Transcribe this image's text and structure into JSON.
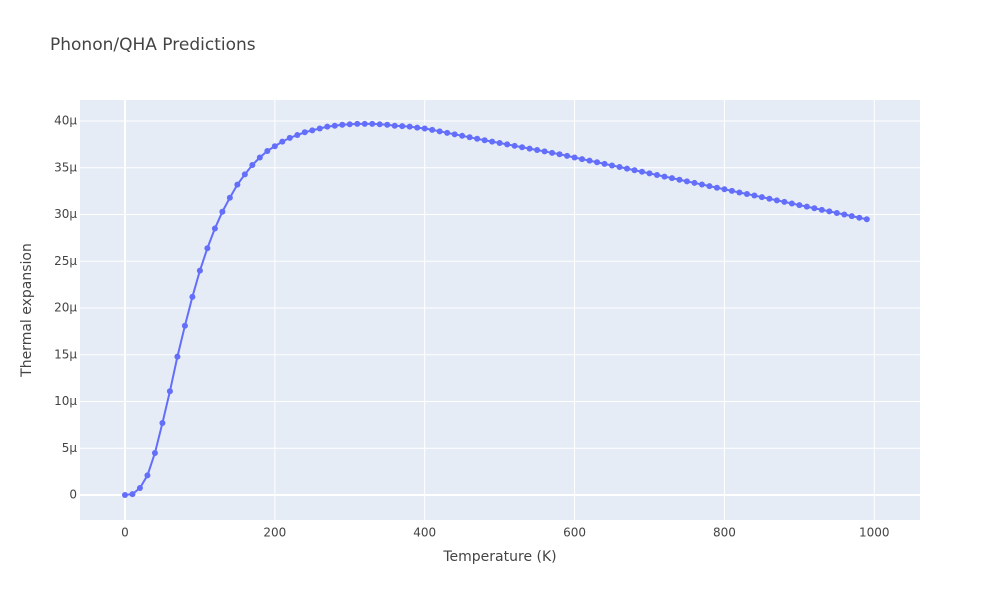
{
  "chart_data": {
    "type": "line",
    "title": "Phonon/QHA Predictions",
    "x_label": "Temperature (K)",
    "y_label": "Thermal expansion",
    "color": "#636efa",
    "grid": true,
    "markers": true,
    "x": [
      0,
      10,
      20,
      30,
      40,
      50,
      60,
      70,
      80,
      90,
      100,
      110,
      120,
      130,
      140,
      150,
      160,
      170,
      180,
      190,
      200,
      210,
      220,
      230,
      240,
      250,
      260,
      270,
      280,
      290,
      300,
      310,
      320,
      330,
      340,
      350,
      360,
      370,
      380,
      390,
      400,
      410,
      420,
      430,
      440,
      450,
      460,
      470,
      480,
      490,
      500,
      510,
      520,
      530,
      540,
      550,
      560,
      570,
      580,
      590,
      600,
      610,
      620,
      630,
      640,
      650,
      660,
      670,
      680,
      690,
      700,
      710,
      720,
      730,
      740,
      750,
      760,
      770,
      780,
      790,
      800,
      810,
      820,
      830,
      840,
      850,
      860,
      870,
      880,
      890,
      900,
      910,
      920,
      930,
      940,
      950,
      960,
      970,
      980,
      990
    ],
    "values": [
      0,
      1e-07,
      7.5e-07,
      2.1e-06,
      4.5e-06,
      7.7e-06,
      1.11e-05,
      1.48e-05,
      1.81e-05,
      2.12e-05,
      2.4e-05,
      2.64e-05,
      2.85e-05,
      3.03e-05,
      3.18e-05,
      3.32e-05,
      3.43e-05,
      3.53e-05,
      3.61e-05,
      3.68e-05,
      3.73e-05,
      3.78e-05,
      3.82e-05,
      3.85e-05,
      3.88e-05,
      3.9e-05,
      3.92e-05,
      3.94e-05,
      3.95e-05,
      3.96e-05,
      3.965e-05,
      3.97e-05,
      3.97e-05,
      3.97e-05,
      3.965e-05,
      3.96e-05,
      3.95e-05,
      3.945e-05,
      3.94e-05,
      3.93e-05,
      3.92e-05,
      3.905e-05,
      3.89e-05,
      3.874e-05,
      3.858e-05,
      3.842e-05,
      3.826e-05,
      3.81e-05,
      3.795e-05,
      3.78e-05,
      3.765e-05,
      3.75e-05,
      3.735e-05,
      3.72e-05,
      3.705e-05,
      3.69e-05,
      3.675e-05,
      3.66e-05,
      3.645e-05,
      3.628e-05,
      3.61e-05,
      3.593e-05,
      3.576e-05,
      3.559e-05,
      3.542e-05,
      3.525e-05,
      3.508e-05,
      3.491e-05,
      3.474e-05,
      3.457e-05,
      3.44e-05,
      3.423e-05,
      3.406e-05,
      3.389e-05,
      3.372e-05,
      3.355e-05,
      3.338e-05,
      3.321e-05,
      3.304e-05,
      3.287e-05,
      3.27e-05,
      3.253e-05,
      3.236e-05,
      3.22e-05,
      3.203e-05,
      3.186e-05,
      3.169e-05,
      3.152e-05,
      3.135e-05,
      3.118e-05,
      3.101e-05,
      3.084e-05,
      3.067e-05,
      3.05e-05,
      3.034e-05,
      3.017e-05,
      3e-05,
      2.983e-05,
      2.966e-05,
      2.95e-05
    ],
    "xlim": [
      -60,
      1061
    ],
    "xticks": [
      0,
      200,
      400,
      600,
      800,
      1000
    ],
    "ylim": [
      -2.67e-06,
      4.225e-05
    ],
    "yticks": [
      0,
      {
        "value": 5e-06,
        "label": "5μ"
      },
      {
        "value": 1e-05,
        "label": "10μ"
      },
      {
        "value": 1.5e-05,
        "label": "15μ"
      },
      {
        "value": 2e-05,
        "label": "20μ"
      },
      {
        "value": 2.5e-05,
        "label": "25μ"
      },
      {
        "value": 3e-05,
        "label": "30μ"
      },
      {
        "value": 3.5e-05,
        "label": "35μ"
      },
      {
        "value": 4e-05,
        "label": "40μ"
      }
    ]
  }
}
